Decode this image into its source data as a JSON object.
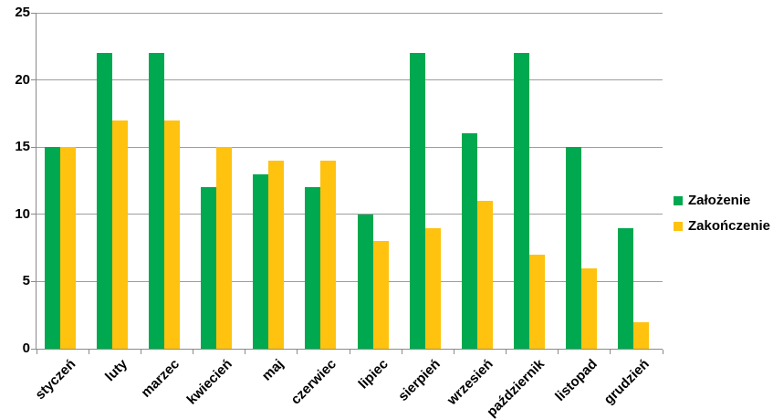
{
  "chart_data": {
    "type": "bar",
    "title": "",
    "categories": [
      "styczeń",
      "luty",
      "marzec",
      "kwiecień",
      "maj",
      "czerwiec",
      "lipiec",
      "sierpień",
      "wrzesień",
      "październik",
      "listopad",
      "grudzień"
    ],
    "series": [
      {
        "name": "Założenie",
        "color": "#00A84F",
        "values": [
          15,
          22,
          22,
          12,
          13,
          12,
          10,
          22,
          16,
          22,
          15,
          9
        ]
      },
      {
        "name": "Zakończenie",
        "color": "#FFC20E",
        "values": [
          15,
          17,
          17,
          15,
          14,
          14,
          8,
          9,
          11,
          7,
          6,
          2
        ]
      }
    ],
    "xlabel": "",
    "ylabel": "",
    "ylim": [
      0,
      25
    ],
    "yticks": [
      0,
      5,
      10,
      15,
      20,
      25
    ],
    "grid": "horizontal",
    "legend_position": "right",
    "colors": {
      "grid_color": "#9D9D9D",
      "axis_color": "#8A8A8A",
      "label_color": "#000000",
      "background": "#FFFFFF"
    }
  }
}
